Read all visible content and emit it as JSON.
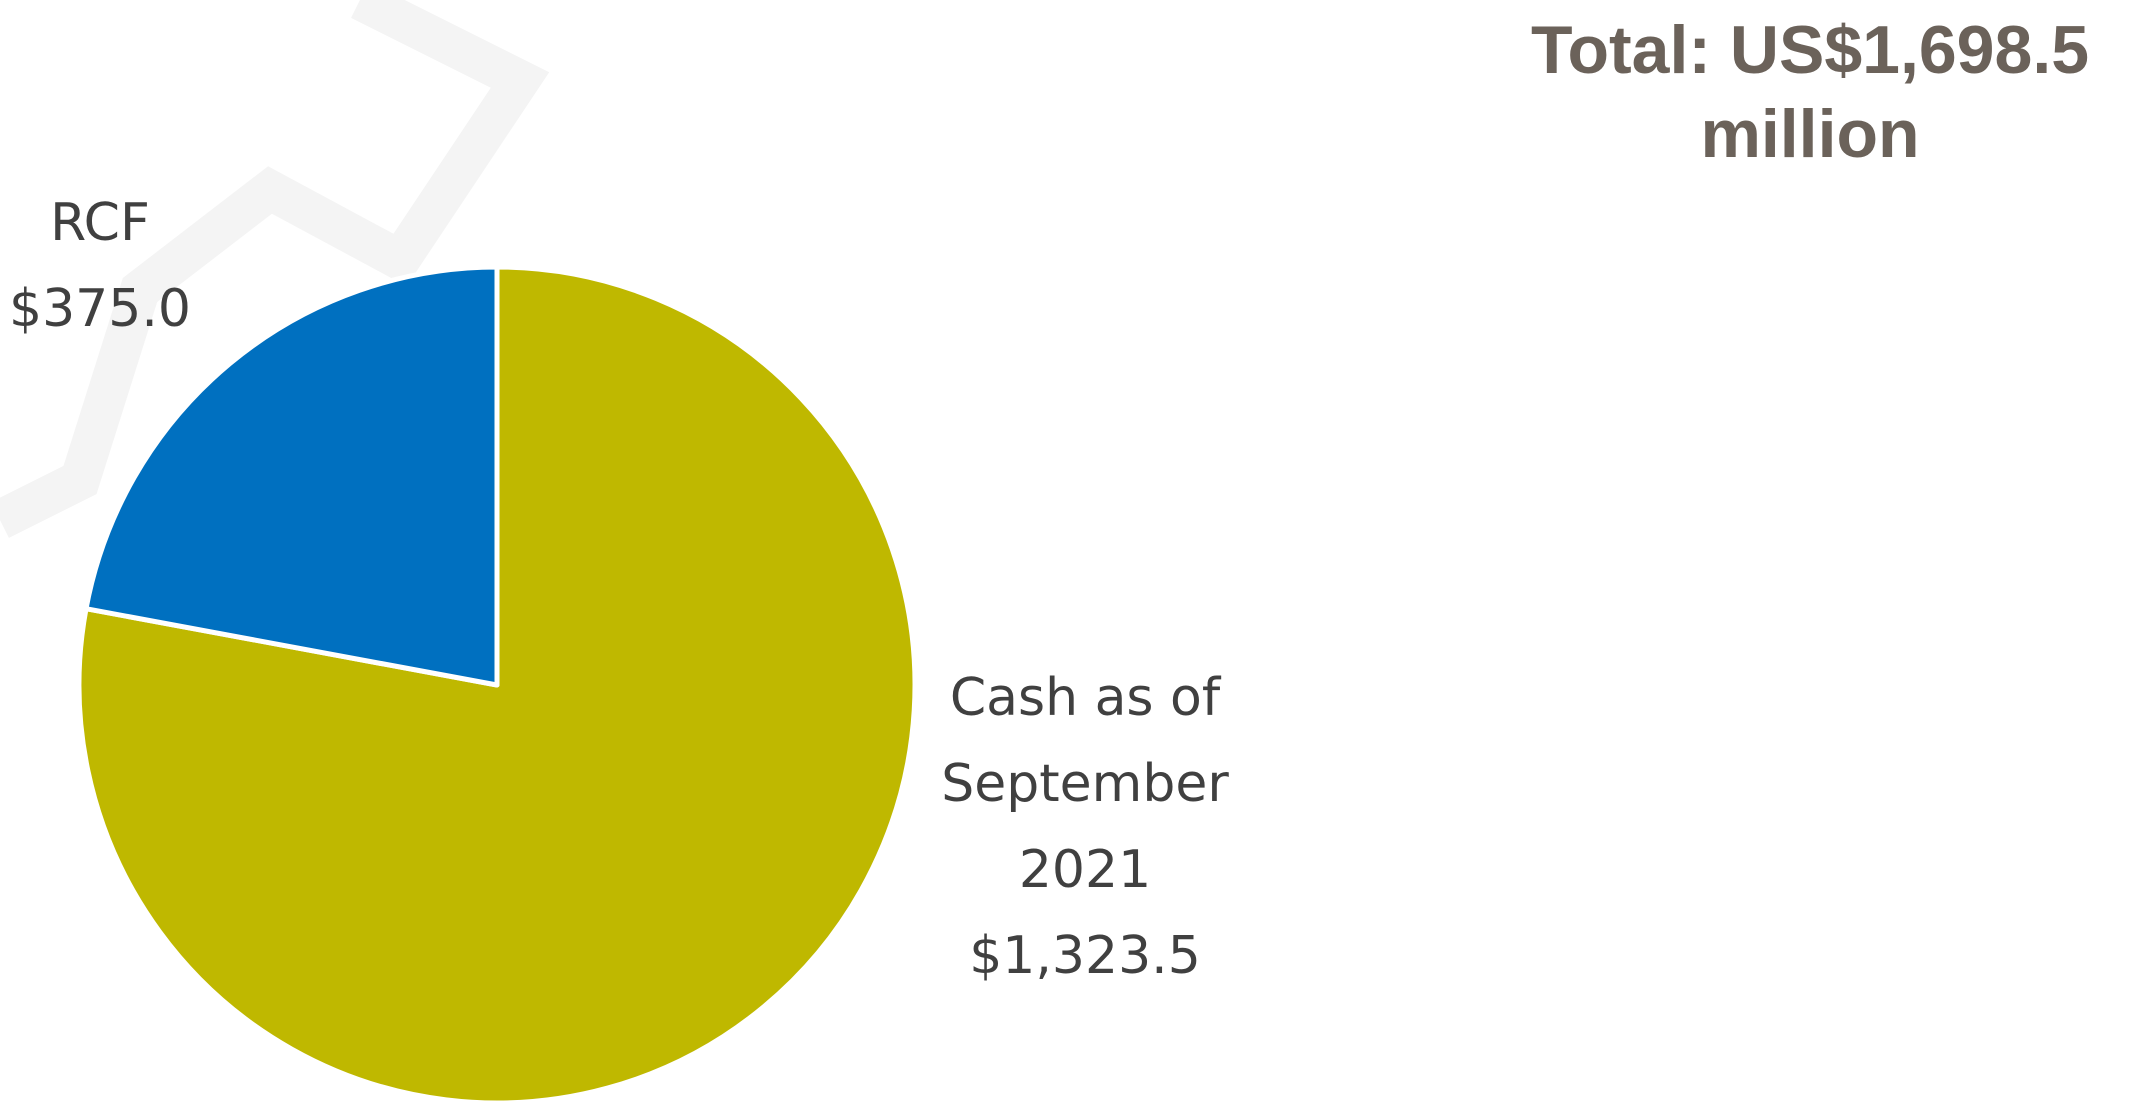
{
  "chart_data": {
    "type": "pie",
    "title": "Total: US$1,698.5 million",
    "categories": [
      "Cash as of September 2021",
      "RCF"
    ],
    "values": [
      1323.5,
      375.0
    ],
    "value_labels": [
      "$1,323.5",
      "$375.0"
    ],
    "colors": [
      "#bfb800",
      "#0070c0"
    ],
    "start_angle": 90,
    "direction": "clockwise"
  }
}
